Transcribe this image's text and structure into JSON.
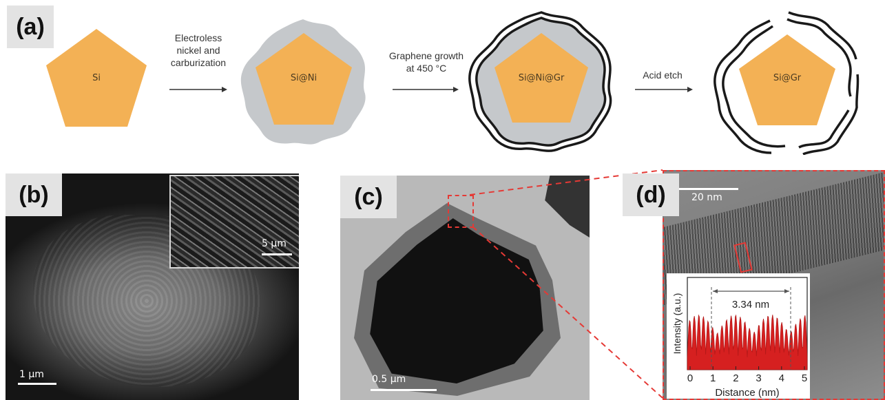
{
  "panel_labels": {
    "a": "(a)",
    "b": "(b)",
    "c": "(c)",
    "d": "(d)"
  },
  "schematic": {
    "shapes": [
      {
        "label": "Si"
      },
      {
        "label": "Si@Ni"
      },
      {
        "label": "Si@Ni@Gr"
      },
      {
        "label": "Si@Gr"
      }
    ],
    "steps": [
      {
        "lines": [
          "Electroless",
          "nickel and",
          "carburization"
        ]
      },
      {
        "lines": [
          "Graphene growth",
          "at 450 °C"
        ]
      },
      {
        "lines": [
          "Acid etch"
        ]
      }
    ],
    "colors": {
      "silicon": "#f3b155",
      "nickel": "#c5c8cb",
      "graphene": "#1a1a1a"
    }
  },
  "panel_b": {
    "scale": "1 µm",
    "inset_scale": "5 µm"
  },
  "panel_c": {
    "scale": "0.5 µm"
  },
  "panel_d": {
    "scale": "20 nm",
    "inset": {
      "measurement": "3.34 nm",
      "xlabel": "Distance (nm)",
      "ylabel": "Intensity (a.u.)",
      "x_ticks": [
        "0",
        "1",
        "2",
        "3",
        "4",
        "5"
      ]
    }
  }
}
